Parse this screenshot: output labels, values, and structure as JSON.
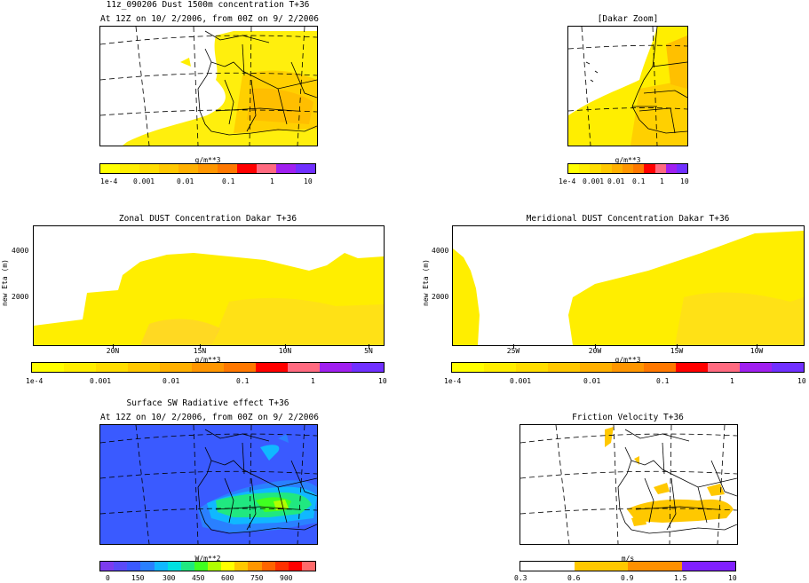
{
  "panel_dust": {
    "title": "11z_090206 Dust 1500m concentration T+36",
    "subtitle": "At 12Z on 10/ 2/2006, from 00Z on 9/ 2/2006",
    "unit": "g/m**3",
    "ticks": [
      "1e-4",
      "0.001",
      "0.01",
      "0.1",
      "1",
      "10"
    ]
  },
  "panel_zoom": {
    "title": "[Dakar Zoom]",
    "unit": "g/m**3",
    "ticks": [
      "1e-4",
      "0.001",
      "0.01",
      "0.1",
      "1",
      "10"
    ]
  },
  "panel_zonal": {
    "title": "Zonal DUST Concentration Dakar T+36",
    "ylabel": "new Eta (m)",
    "yticks": [
      "4000",
      "2000"
    ],
    "xticks": [
      "20N",
      "15N",
      "10N",
      "5N"
    ],
    "unit": "g/m**3",
    "ticks": [
      "1e-4",
      "0.001",
      "0.01",
      "0.1",
      "1",
      "10"
    ]
  },
  "panel_meridional": {
    "title": "Meridional DUST Concentration Dakar T+36",
    "ylabel": "new Eta (m)",
    "yticks": [
      "4000",
      "2000"
    ],
    "xticks": [
      "25W",
      "20W",
      "15W",
      "10W"
    ],
    "unit": "g/m**3",
    "ticks": [
      "1e-4",
      "0.001",
      "0.01",
      "0.1",
      "1",
      "10"
    ]
  },
  "panel_sw": {
    "title": "Surface SW Radiative effect T+36",
    "subtitle": "At 12Z on 10/ 2/2006, from 00Z on 9/ 2/2006",
    "unit": "W/m**2",
    "ticks": [
      "0",
      "150",
      "300",
      "450",
      "600",
      "750",
      "900"
    ]
  },
  "panel_friction": {
    "title": "Friction Velocity T+36",
    "unit": "m/s",
    "ticks": [
      "0.3",
      "0.6",
      "0.9",
      "1.5",
      "10"
    ]
  },
  "colors": {
    "dust_scale": [
      "#ffff00",
      "#ffee00",
      "#ffdd00",
      "#ffc800",
      "#ffb000",
      "#ff9600",
      "#ff7800",
      "#ff5a00",
      "#ff0000",
      "#ff6a80",
      "#a020f0",
      "#7030ff"
    ],
    "sw_scale": [
      "#7c3cf0",
      "#5a4af8",
      "#3a5aff",
      "#2a80ff",
      "#10b8ff",
      "#00e0e0",
      "#20e880",
      "#40ff20",
      "#b0ff00",
      "#ffff00",
      "#ffc800",
      "#ff9600",
      "#ff6400",
      "#ff3000",
      "#ff0000",
      "#ff6a6a"
    ],
    "friction_scale": [
      "#ffffff",
      "#ffc800",
      "#ff9000",
      "#8020ff"
    ],
    "map_background_sw": "#3a5aff"
  },
  "chart_data": [
    {
      "type": "heatmap",
      "title": "11z_090206 Dust 1500m concentration T+36",
      "colorbar_label": "g/m**3",
      "colorbar_ticks": [
        0.0001,
        0.001,
        0.01,
        0.1,
        1,
        10
      ],
      "scale": "log"
    },
    {
      "type": "heatmap",
      "title": "[Dakar Zoom]",
      "colorbar_label": "g/m**3",
      "colorbar_ticks": [
        0.0001,
        0.001,
        0.01,
        0.1,
        1,
        10
      ],
      "scale": "log"
    },
    {
      "type": "area",
      "title": "Zonal DUST Concentration Dakar T+36",
      "ylabel": "new Eta (m)",
      "x_ticks": [
        "20N",
        "15N",
        "10N",
        "5N"
      ],
      "y_ticks": [
        2000,
        4000
      ],
      "colorbar_label": "g/m**3",
      "colorbar_ticks": [
        0.0001,
        0.001,
        0.01,
        0.1,
        1,
        10
      ]
    },
    {
      "type": "area",
      "title": "Meridional DUST Concentration Dakar T+36",
      "ylabel": "new Eta (m)",
      "x_ticks": [
        "25W",
        "20W",
        "15W",
        "10W"
      ],
      "y_ticks": [
        2000,
        4000
      ],
      "colorbar_label": "g/m**3",
      "colorbar_ticks": [
        0.0001,
        0.001,
        0.01,
        0.1,
        1,
        10
      ]
    },
    {
      "type": "heatmap",
      "title": "Surface SW Radiative effect T+36",
      "colorbar_label": "W/m**2",
      "colorbar_ticks": [
        0,
        150,
        300,
        450,
        600,
        750,
        900
      ]
    },
    {
      "type": "heatmap",
      "title": "Friction Velocity T+36",
      "colorbar_label": "m/s",
      "colorbar_ticks": [
        0.3,
        0.6,
        0.9,
        1.5,
        10
      ]
    }
  ]
}
